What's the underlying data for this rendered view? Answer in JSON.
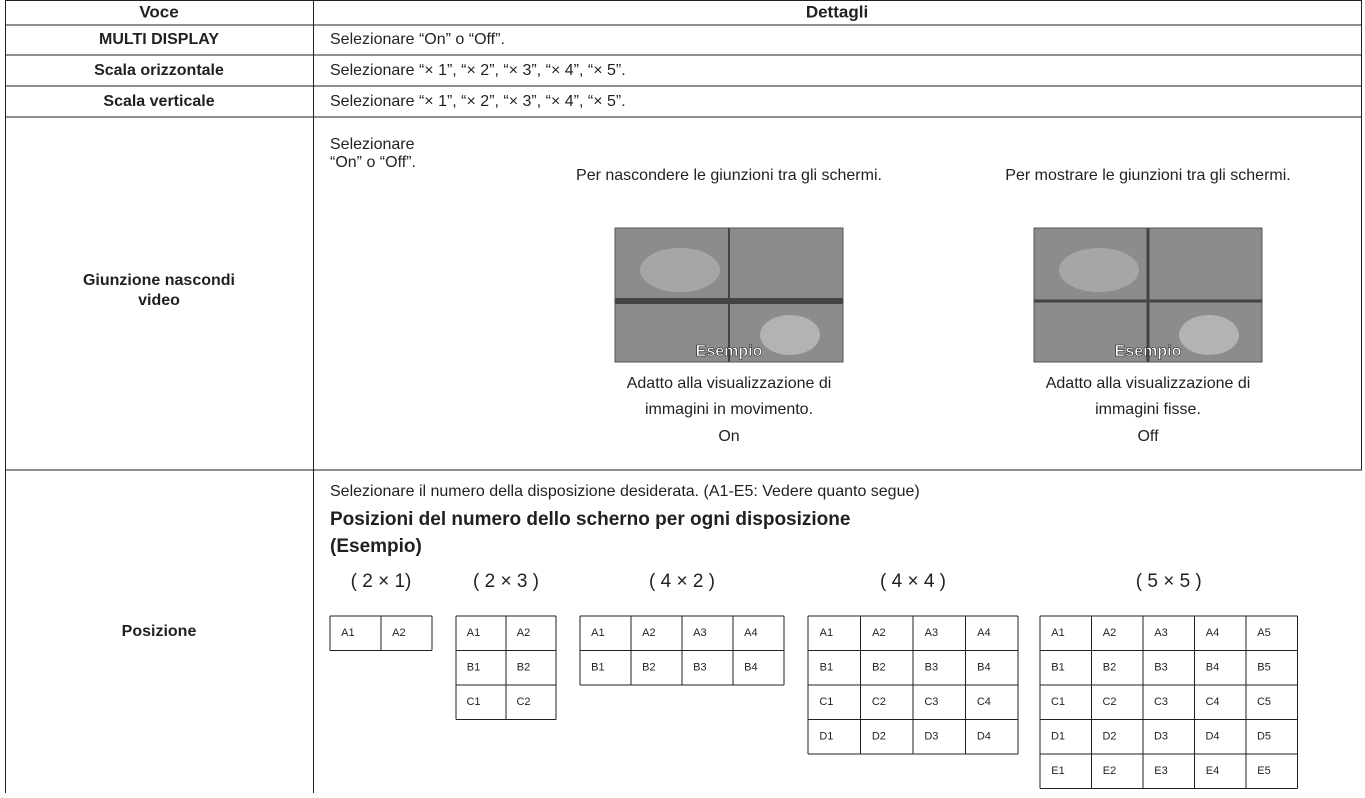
{
  "table": {
    "header": [
      "Voce",
      "Dettagli"
    ],
    "rows": [
      {
        "item": "MULTI DISPLAY",
        "details": "Selezionare “On” o “Off”."
      },
      {
        "item": "Scala orizzontale",
        "details": "Selezionare “× 1”, “× 2”, “× 3”, “× 4”, “× 5”."
      },
      {
        "item": "Scala verticale",
        "details": "Selezionare “× 1”, “× 2”, “× 3”, “× 4”, “× 5”."
      },
      {
        "item": [
          "Giunzione nascondi",
          "video"
        ],
        "details": {
          "intro": [
            "Selezionare",
            "“On” o “Off”."
          ],
          "options": [
            {
              "note": "Per nascondere le giunzioni tra gli schermi.",
              "image_label": "Esempio",
              "caption": [
                "Adatto alla visualizzazione di",
                "immagini in movimento."
              ],
              "setting": "On"
            },
            {
              "note": "Per mostrare le giunzioni tra gli schermi.",
              "image_label": "Esempio",
              "caption": [
                "Adatto alla visualizzazione di",
                "immagini fisse."
              ],
              "setting": "Off"
            }
          ]
        }
      },
      {
        "item": "Posizione",
        "details": {
          "intro": "Selezionare il numero della disposizione desiderata. (A1-E5: Vedere quanto segue)",
          "heading": [
            "Posizioni del numero dello scherno per ogni disposizione",
            "(Esempio)"
          ],
          "layouts": [
            {
              "label": "( 2 × 1)",
              "cells": [
                [
                  "A1",
                  "A2"
                ]
              ]
            },
            {
              "label": "( 2 × 3 )",
              "cells": [
                [
                  "A1",
                  "A2"
                ],
                [
                  "B1",
                  "B2"
                ],
                [
                  "C1",
                  "C2"
                ]
              ]
            },
            {
              "label": "( 4 × 2 )",
              "cells": [
                [
                  "A1",
                  "A2",
                  "A3",
                  "A4"
                ],
                [
                  "B1",
                  "B2",
                  "B3",
                  "B4"
                ]
              ]
            },
            {
              "label": "( 4 × 4 )",
              "cells": [
                [
                  "A1",
                  "A2",
                  "A3",
                  "A4"
                ],
                [
                  "B1",
                  "B2",
                  "B3",
                  "B4"
                ],
                [
                  "C1",
                  "C2",
                  "C3",
                  "C4"
                ],
                [
                  "D1",
                  "D2",
                  "D3",
                  "D4"
                ]
              ]
            },
            {
              "label": "( 5 × 5 )",
              "cells": [
                [
                  "A1",
                  "A2",
                  "A3",
                  "A4",
                  "A5"
                ],
                [
                  "B1",
                  "B2",
                  "B3",
                  "B4",
                  "B5"
                ],
                [
                  "C1",
                  "C2",
                  "C3",
                  "C4",
                  "C5"
                ],
                [
                  "D1",
                  "D2",
                  "D3",
                  "D4",
                  "D5"
                ],
                [
                  "E1",
                  "E2",
                  "E3",
                  "E4",
                  "E5"
                ]
              ]
            }
          ]
        }
      }
    ]
  }
}
